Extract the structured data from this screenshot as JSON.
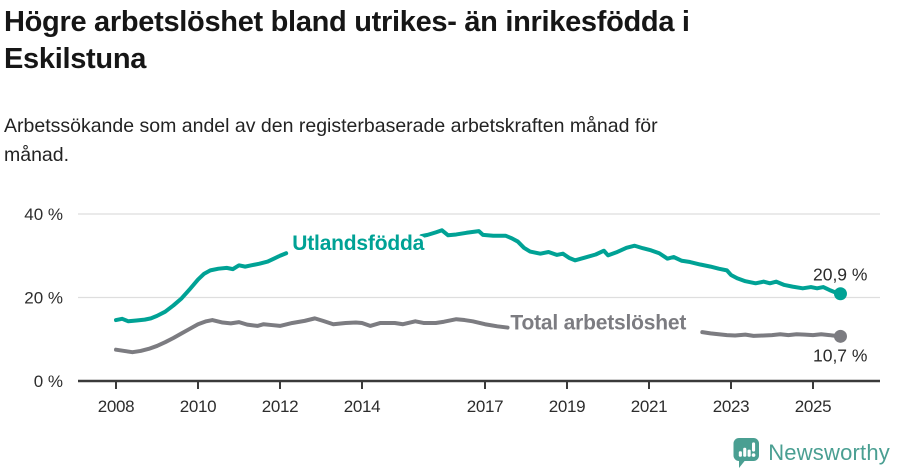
{
  "header": {
    "title_line1": "Högre arbetslöshet bland utrikes- än inrikesfödda i",
    "title_line2": "Eskilstuna",
    "subtitle_line1": "Arbetssökande som andel av den registerbaserade arbetskraften månad för",
    "subtitle_line2": "månad."
  },
  "footer": {
    "brand": "Newsworthy",
    "logo_icon": "newsworthy-speech-bubble-bar-chart-icon"
  },
  "colors": {
    "accent_teal": "#00a295",
    "line_gray": "#7c7c81",
    "title_text": "#161616",
    "axis_text": "#2d2d2d",
    "grid": "#dedede",
    "axis_line": "#3a3a3a",
    "value_label_text": "#2b2b2b",
    "logo_teal": "#4a9f92"
  },
  "chart_data": {
    "type": "line",
    "x_ticks": [
      2008,
      2010,
      2012,
      2014,
      2017,
      2019,
      2021,
      2023,
      2025
    ],
    "y_ticks": [
      0,
      20,
      40
    ],
    "y_tick_suffix": " %",
    "x_range": [
      2008,
      2025.67
    ],
    "y_range": [
      0,
      42
    ],
    "grid": true,
    "legend_position": "inline-labels",
    "series": [
      {
        "name": "Utlandsfödda",
        "color": "#00a295",
        "end_value": 20.9,
        "end_value_label": "20,9 %",
        "end_label_position": "above",
        "label_annotation": {
          "text": "Utlandsfödda",
          "x": 2012.3,
          "y_baseline": 31.4
        },
        "segments": [
          [
            [
              2008.0,
              14.6
            ],
            [
              2008.15,
              14.9
            ],
            [
              2008.3,
              14.3
            ],
            [
              2008.5,
              14.5
            ],
            [
              2008.7,
              14.7
            ],
            [
              2008.85,
              15.0
            ],
            [
              2009.0,
              15.6
            ],
            [
              2009.2,
              16.6
            ],
            [
              2009.4,
              18.1
            ],
            [
              2009.6,
              19.8
            ],
            [
              2009.8,
              22.0
            ],
            [
              2010.0,
              24.3
            ],
            [
              2010.15,
              25.7
            ],
            [
              2010.3,
              26.5
            ],
            [
              2010.5,
              26.9
            ],
            [
              2010.7,
              27.1
            ],
            [
              2010.85,
              26.8
            ],
            [
              2011.0,
              27.7
            ],
            [
              2011.15,
              27.4
            ],
            [
              2011.3,
              27.7
            ],
            [
              2011.5,
              28.1
            ],
            [
              2011.7,
              28.6
            ],
            [
              2011.85,
              29.3
            ],
            [
              2012.0,
              30.0
            ],
            [
              2012.15,
              30.6
            ]
          ],
          [
            [
              2015.45,
              34.7
            ],
            [
              2015.6,
              35.0
            ],
            [
              2015.8,
              35.6
            ],
            [
              2015.95,
              36.1
            ],
            [
              2016.1,
              34.9
            ],
            [
              2016.3,
              35.1
            ],
            [
              2016.55,
              35.5
            ],
            [
              2016.85,
              35.9
            ],
            [
              2016.95,
              35.0
            ],
            [
              2017.2,
              34.8
            ],
            [
              2017.5,
              34.8
            ],
            [
              2017.65,
              34.2
            ],
            [
              2017.8,
              33.4
            ],
            [
              2017.95,
              31.9
            ],
            [
              2018.1,
              31.0
            ],
            [
              2018.35,
              30.5
            ],
            [
              2018.55,
              30.9
            ],
            [
              2018.75,
              30.2
            ],
            [
              2018.9,
              30.5
            ],
            [
              2019.05,
              29.5
            ],
            [
              2019.2,
              28.9
            ],
            [
              2019.45,
              29.6
            ],
            [
              2019.7,
              30.3
            ],
            [
              2019.9,
              31.2
            ],
            [
              2020.0,
              30.1
            ],
            [
              2020.2,
              30.8
            ],
            [
              2020.45,
              31.9
            ],
            [
              2020.65,
              32.4
            ],
            [
              2020.85,
              31.8
            ],
            [
              2021.05,
              31.3
            ],
            [
              2021.25,
              30.6
            ],
            [
              2021.45,
              29.3
            ],
            [
              2021.6,
              29.7
            ],
            [
              2021.8,
              28.8
            ],
            [
              2022.0,
              28.5
            ],
            [
              2022.25,
              27.9
            ],
            [
              2022.5,
              27.4
            ],
            [
              2022.7,
              26.9
            ],
            [
              2022.9,
              26.5
            ],
            [
              2023.0,
              25.4
            ],
            [
              2023.15,
              24.6
            ],
            [
              2023.35,
              23.9
            ],
            [
              2023.6,
              23.4
            ],
            [
              2023.8,
              23.8
            ],
            [
              2023.95,
              23.4
            ],
            [
              2024.1,
              23.8
            ],
            [
              2024.3,
              23.0
            ],
            [
              2024.5,
              22.6
            ],
            [
              2024.75,
              22.2
            ],
            [
              2024.95,
              22.5
            ],
            [
              2025.1,
              22.2
            ],
            [
              2025.25,
              22.5
            ],
            [
              2025.4,
              21.8
            ],
            [
              2025.55,
              21.2
            ],
            [
              2025.67,
              20.9
            ]
          ]
        ]
      },
      {
        "name": "Total arbetslöshet",
        "color": "#7c7c81",
        "end_value": 10.7,
        "end_value_label": "10,7 %",
        "end_label_position": "below",
        "label_annotation": {
          "text": "Total arbetslöshet",
          "x": 2017.62,
          "y_baseline": 12.3
        },
        "segments": [
          [
            [
              2008.0,
              7.5
            ],
            [
              2008.2,
              7.2
            ],
            [
              2008.4,
              6.9
            ],
            [
              2008.6,
              7.2
            ],
            [
              2008.8,
              7.7
            ],
            [
              2009.0,
              8.4
            ],
            [
              2009.2,
              9.3
            ],
            [
              2009.4,
              10.3
            ],
            [
              2009.6,
              11.4
            ],
            [
              2009.8,
              12.5
            ],
            [
              2010.0,
              13.6
            ],
            [
              2010.2,
              14.3
            ],
            [
              2010.35,
              14.6
            ],
            [
              2010.6,
              14.0
            ],
            [
              2010.8,
              13.8
            ],
            [
              2011.0,
              14.1
            ],
            [
              2011.2,
              13.5
            ],
            [
              2011.45,
              13.2
            ],
            [
              2011.6,
              13.6
            ],
            [
              2011.8,
              13.4
            ],
            [
              2012.0,
              13.2
            ],
            [
              2012.3,
              13.9
            ],
            [
              2012.6,
              14.4
            ],
            [
              2012.85,
              15.0
            ],
            [
              2013.05,
              14.4
            ],
            [
              2013.3,
              13.6
            ],
            [
              2013.6,
              13.9
            ],
            [
              2013.85,
              14.0
            ],
            [
              2014.0,
              13.9
            ],
            [
              2014.2,
              13.2
            ],
            [
              2014.45,
              13.9
            ],
            [
              2014.8,
              13.9
            ],
            [
              2015.0,
              13.6
            ],
            [
              2015.3,
              14.3
            ],
            [
              2015.5,
              13.9
            ],
            [
              2015.8,
              13.9
            ],
            [
              2016.0,
              14.2
            ],
            [
              2016.3,
              14.8
            ],
            [
              2016.5,
              14.6
            ],
            [
              2016.7,
              14.3
            ],
            [
              2017.0,
              13.6
            ],
            [
              2017.3,
              13.1
            ],
            [
              2017.55,
              12.8
            ]
          ],
          [
            [
              2022.3,
              11.7
            ],
            [
              2022.5,
              11.4
            ],
            [
              2022.7,
              11.2
            ],
            [
              2022.9,
              11.0
            ],
            [
              2023.1,
              10.9
            ],
            [
              2023.35,
              11.1
            ],
            [
              2023.55,
              10.8
            ],
            [
              2023.8,
              10.9
            ],
            [
              2024.0,
              11.0
            ],
            [
              2024.2,
              11.2
            ],
            [
              2024.4,
              11.0
            ],
            [
              2024.6,
              11.2
            ],
            [
              2024.8,
              11.1
            ],
            [
              2025.0,
              11.0
            ],
            [
              2025.2,
              11.2
            ],
            [
              2025.4,
              11.0
            ],
            [
              2025.55,
              10.8
            ],
            [
              2025.67,
              10.7
            ]
          ]
        ]
      }
    ]
  }
}
